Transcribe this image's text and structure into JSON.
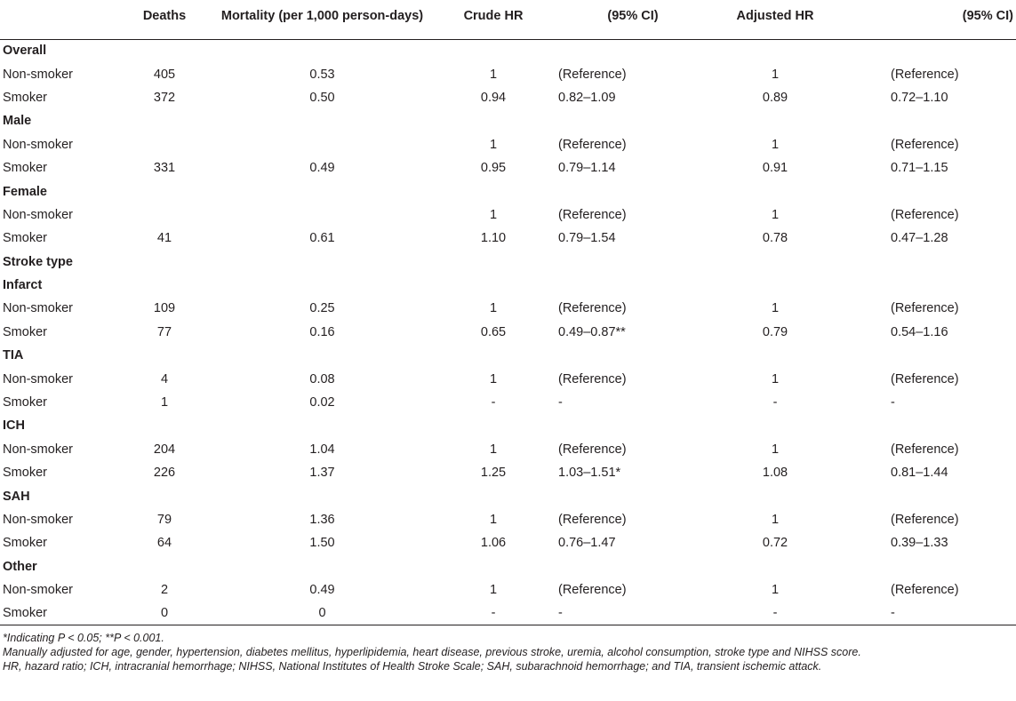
{
  "headers": [
    "",
    "Deaths",
    "Mortality (per 1,000 person-days)",
    "Crude HR",
    "(95% CI)",
    "Adjusted HR",
    "(95% CI)"
  ],
  "rows": [
    {
      "label": "Overall",
      "section": true
    },
    {
      "label": "Non-smoker",
      "deaths": "405",
      "mortality": "0.53",
      "crude_hr": "1",
      "crude_ci": "(Reference)",
      "adj_hr": "1",
      "adj_ci": "(Reference)"
    },
    {
      "label": "Smoker",
      "deaths": "372",
      "mortality": "0.50",
      "crude_hr": "0.94",
      "crude_ci": "0.82–1.09",
      "adj_hr": "0.89",
      "adj_ci": "0.72–1.10"
    },
    {
      "label": "Male",
      "section": true
    },
    {
      "label": "Non-smoker",
      "deaths": "",
      "mortality": "",
      "crude_hr": "1",
      "crude_ci": "(Reference)",
      "adj_hr": "1",
      "adj_ci": "(Reference)"
    },
    {
      "label": "Smoker",
      "deaths": "331",
      "mortality": "0.49",
      "crude_hr": "0.95",
      "crude_ci": "0.79–1.14",
      "adj_hr": "0.91",
      "adj_ci": "0.71–1.15"
    },
    {
      "label": "Female",
      "section": true
    },
    {
      "label": "Non-smoker",
      "deaths": "",
      "mortality": "",
      "crude_hr": "1",
      "crude_ci": "(Reference)",
      "adj_hr": "1",
      "adj_ci": "(Reference)"
    },
    {
      "label": "Smoker",
      "deaths": "41",
      "mortality": "0.61",
      "crude_hr": "1.10",
      "crude_ci": "0.79–1.54",
      "adj_hr": "0.78",
      "adj_ci": "0.47–1.28"
    },
    {
      "label": "Stroke type",
      "section": true
    },
    {
      "label": "Infarct",
      "section": true
    },
    {
      "label": "Non-smoker",
      "deaths": "109",
      "mortality": "0.25",
      "crude_hr": "1",
      "crude_ci": "(Reference)",
      "adj_hr": "1",
      "adj_ci": "(Reference)"
    },
    {
      "label": "Smoker",
      "deaths": "77",
      "mortality": "0.16",
      "crude_hr": "0.65",
      "crude_ci": "0.49–0.87**",
      "adj_hr": "0.79",
      "adj_ci": "0.54–1.16"
    },
    {
      "label": "TIA",
      "section": true
    },
    {
      "label": "Non-smoker",
      "deaths": "4",
      "mortality": "0.08",
      "crude_hr": "1",
      "crude_ci": "(Reference)",
      "adj_hr": "1",
      "adj_ci": "(Reference)"
    },
    {
      "label": "Smoker",
      "deaths": "1",
      "mortality": "0.02",
      "crude_hr": "-",
      "crude_ci": "-",
      "adj_hr": "-",
      "adj_ci": "-"
    },
    {
      "label": "ICH",
      "section": true
    },
    {
      "label": "Non-smoker",
      "deaths": "204",
      "mortality": "1.04",
      "crude_hr": "1",
      "crude_ci": "(Reference)",
      "adj_hr": "1",
      "adj_ci": "(Reference)"
    },
    {
      "label": "Smoker",
      "deaths": "226",
      "mortality": "1.37",
      "crude_hr": "1.25",
      "crude_ci": "1.03–1.51*",
      "adj_hr": "1.08",
      "adj_ci": "0.81–1.44"
    },
    {
      "label": "SAH",
      "section": true
    },
    {
      "label": "Non-smoker",
      "deaths": "79",
      "mortality": "1.36",
      "crude_hr": "1",
      "crude_ci": "(Reference)",
      "adj_hr": "1",
      "adj_ci": "(Reference)"
    },
    {
      "label": "Smoker",
      "deaths": "64",
      "mortality": "1.50",
      "crude_hr": "1.06",
      "crude_ci": "0.76–1.47",
      "adj_hr": "0.72",
      "adj_ci": "0.39–1.33"
    },
    {
      "label": "Other",
      "section": true
    },
    {
      "label": "Non-smoker",
      "deaths": "2",
      "mortality": "0.49",
      "crude_hr": "1",
      "crude_ci": "(Reference)",
      "adj_hr": "1",
      "adj_ci": "(Reference)"
    },
    {
      "label": "Smoker",
      "deaths": "0",
      "mortality": "0",
      "crude_hr": "-",
      "crude_ci": "-",
      "adj_hr": "-",
      "adj_ci": "-"
    }
  ],
  "footnotes": [
    "*Indicating P < 0.05; **P < 0.001.",
    "Manually adjusted for age, gender, hypertension, diabetes mellitus, hyperlipidemia, heart disease, previous stroke, uremia, alcohol consumption, stroke type and NIHSS score.",
    "HR, hazard ratio; ICH, intracranial hemorrhage; NIHSS, National Institutes of Health Stroke Scale; SAH, subarachnoid hemorrhage; and TIA, transient ischemic attack."
  ]
}
